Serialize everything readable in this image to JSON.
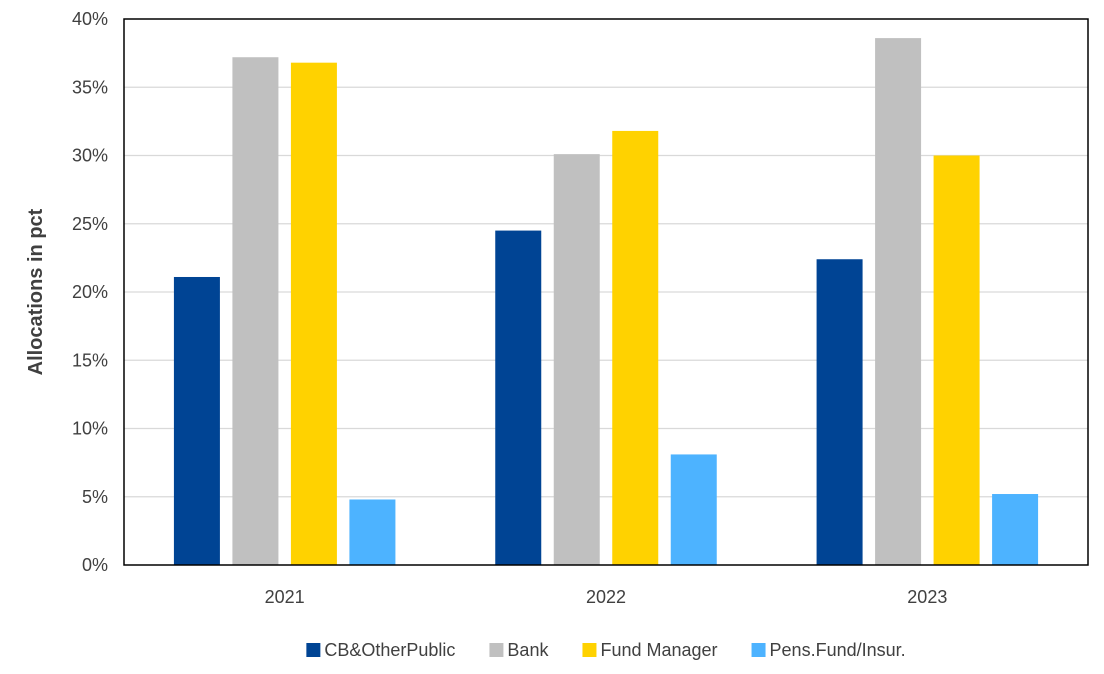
{
  "chart_data": {
    "type": "bar",
    "categories": [
      "2021",
      "2022",
      "2023"
    ],
    "series": [
      {
        "name": "CB&OtherPublic",
        "values": [
          21.1,
          24.5,
          22.4
        ],
        "color": "#004494"
      },
      {
        "name": "Bank",
        "values": [
          37.2,
          30.1,
          38.6
        ],
        "color": "#C0C0C0"
      },
      {
        "name": "Fund Manager",
        "values": [
          36.8,
          31.8,
          30.0
        ],
        "color": "#FFD200"
      },
      {
        "name": "Pens.Fund/Insur.",
        "values": [
          4.8,
          8.1,
          5.2
        ],
        "color": "#4DB3FF"
      }
    ],
    "title": "",
    "xlabel": "",
    "ylabel": "Allocations in pct",
    "ylim": [
      0,
      40
    ],
    "yticks": [
      "0%",
      "5%",
      "10%",
      "15%",
      "20%",
      "25%",
      "30%",
      "35%",
      "40%"
    ],
    "grid": true,
    "legend_position": "bottom"
  }
}
